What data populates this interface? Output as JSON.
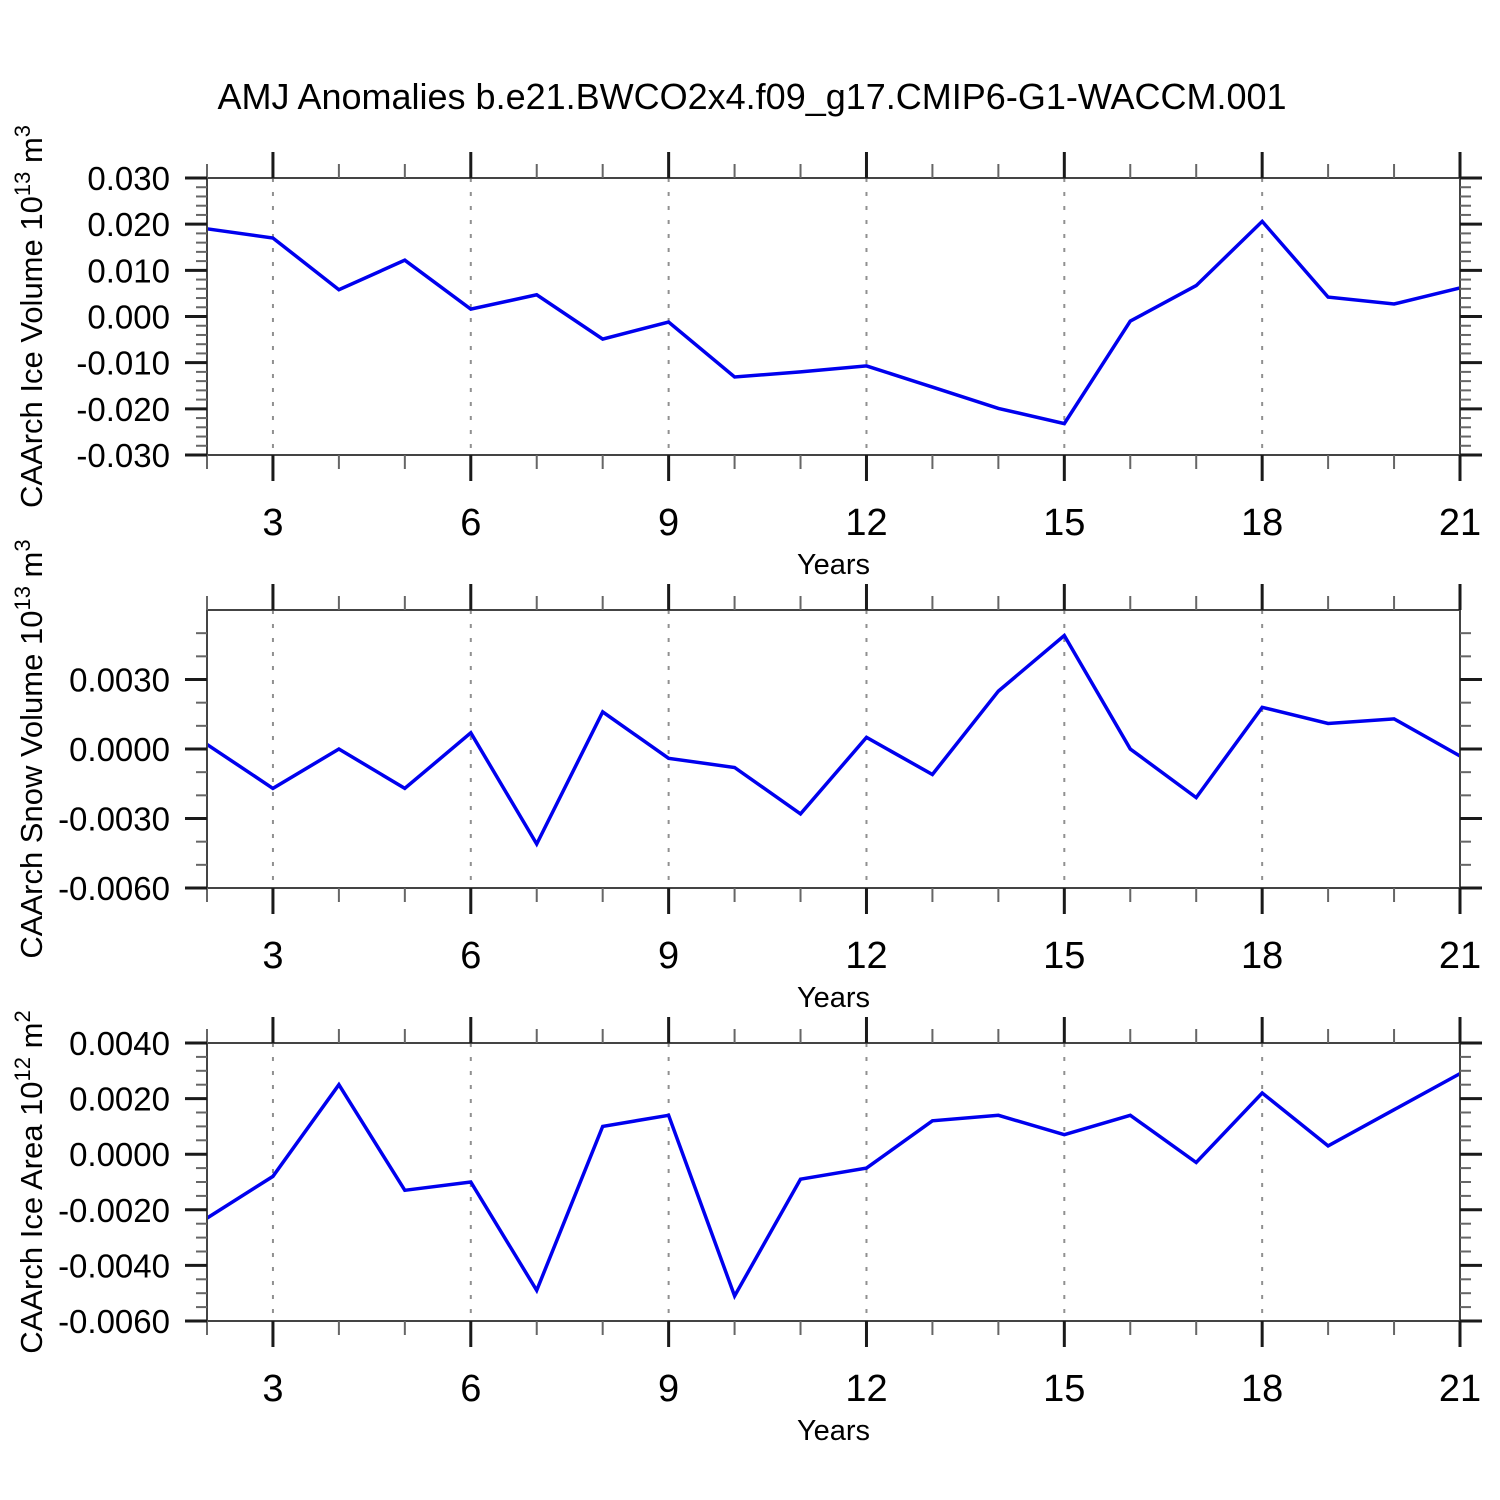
{
  "title": "AMJ Anomalies b.e21.BWCO2x4.f09_g17.CMIP6-G1-WACCM.001",
  "colors": {
    "line": "#0000ee",
    "frame": "#444444",
    "grid": "#909090",
    "major_tick": "#1a1a1a",
    "minor_tick": "#666666",
    "text": "#000000"
  },
  "chart_data": [
    {
      "type": "line",
      "xlabel": "Years",
      "ylabel_segments": [
        {
          "t": "CAArch Ice Volume 10"
        },
        {
          "t": "13",
          "sup": true
        },
        {
          "t": " m"
        },
        {
          "t": "3",
          "sup": true
        }
      ],
      "x": [
        2,
        3,
        4,
        5,
        6,
        7,
        8,
        9,
        10,
        11,
        12,
        13,
        14,
        15,
        16,
        17,
        18,
        19,
        20,
        21
      ],
      "values": [
        0.019,
        0.017,
        0.0058,
        0.0122,
        0.0016,
        0.0047,
        -0.0049,
        -0.0012,
        -0.0131,
        -0.012,
        -0.0107,
        -0.0153,
        -0.0199,
        -0.0232,
        -0.001,
        0.0067,
        0.0206,
        0.0042,
        0.0027,
        0.0062
      ],
      "xlim": [
        2,
        21
      ],
      "ylim": [
        -0.03,
        0.03
      ],
      "yticks": [
        0.03,
        0.02,
        0.01,
        0,
        -0.01,
        -0.02,
        -0.03
      ],
      "ytick_labels": [
        "0.030",
        "0.020",
        "0.010",
        "0.000",
        "-0.010",
        "-0.020",
        "-0.030"
      ],
      "ytick_minor_step": 0.002,
      "xticks": [
        3,
        6,
        9,
        12,
        15,
        18,
        21
      ],
      "xtick_labels": [
        "3",
        "6",
        "9",
        "12",
        "15",
        "18",
        "21"
      ],
      "xtick_minor_step": 1,
      "grid_x": [
        3,
        6,
        9,
        12,
        15,
        18
      ],
      "grid": "vertical-dashed",
      "legend": "none"
    },
    {
      "type": "line",
      "xlabel": "Years",
      "ylabel_segments": [
        {
          "t": "CAArch Snow Volume 10"
        },
        {
          "t": "13",
          "sup": true
        },
        {
          "t": " m"
        },
        {
          "t": "3",
          "sup": true
        }
      ],
      "x": [
        2,
        3,
        4,
        5,
        6,
        7,
        8,
        9,
        10,
        11,
        12,
        13,
        14,
        15,
        16,
        17,
        18,
        19,
        20,
        21
      ],
      "values": [
        0.0002,
        -0.0017,
        0.0,
        -0.0017,
        0.0007,
        -0.0041,
        0.0016,
        -0.0004,
        -0.0008,
        -0.0028,
        0.0005,
        -0.0011,
        0.0025,
        0.0049,
        0.0,
        -0.0021,
        0.0018,
        0.0011,
        0.0013,
        -0.0003
      ],
      "xlim": [
        2,
        21
      ],
      "ylim": [
        -0.006,
        0.006
      ],
      "yticks": [
        0.003,
        0,
        -0.003,
        -0.006
      ],
      "ytick_labels": [
        "0.0030",
        "0.0000",
        "-0.0030",
        "-0.0060"
      ],
      "ytick_minor_step": 0.001,
      "xticks": [
        3,
        6,
        9,
        12,
        15,
        18,
        21
      ],
      "xtick_labels": [
        "3",
        "6",
        "9",
        "12",
        "15",
        "18",
        "21"
      ],
      "xtick_minor_step": 1,
      "grid_x": [
        3,
        6,
        9,
        12,
        15,
        18
      ],
      "grid": "vertical-dashed",
      "legend": "none"
    },
    {
      "type": "line",
      "xlabel": "Years",
      "ylabel_segments": [
        {
          "t": "CAArch Ice Area 10"
        },
        {
          "t": "12",
          "sup": true
        },
        {
          "t": " m"
        },
        {
          "t": "2",
          "sup": true
        }
      ],
      "x": [
        2,
        3,
        4,
        5,
        6,
        7,
        8,
        9,
        10,
        11,
        12,
        13,
        14,
        15,
        16,
        17,
        18,
        19,
        20,
        21
      ],
      "values": [
        -0.0023,
        -0.0008,
        0.0025,
        -0.0013,
        -0.001,
        -0.0049,
        0.001,
        0.0014,
        -0.0051,
        -0.0009,
        -0.0005,
        0.0012,
        0.0014,
        0.0007,
        0.0014,
        -0.0003,
        0.0022,
        0.0003,
        0.0016,
        0.0029
      ],
      "xlim": [
        2,
        21
      ],
      "ylim": [
        -0.006,
        0.004
      ],
      "yticks": [
        0.004,
        0.002,
        0,
        -0.002,
        -0.004,
        -0.006
      ],
      "ytick_labels": [
        "0.0040",
        "0.0020",
        "0.0000",
        "-0.0020",
        "-0.0040",
        "-0.0060"
      ],
      "ytick_minor_step": 0.0005,
      "xticks": [
        3,
        6,
        9,
        12,
        15,
        18,
        21
      ],
      "xtick_labels": [
        "3",
        "6",
        "9",
        "12",
        "15",
        "18",
        "21"
      ],
      "xtick_minor_step": 1,
      "grid_x": [
        3,
        6,
        9,
        12,
        15,
        18
      ],
      "grid": "vertical-dashed",
      "legend": "none"
    }
  ]
}
